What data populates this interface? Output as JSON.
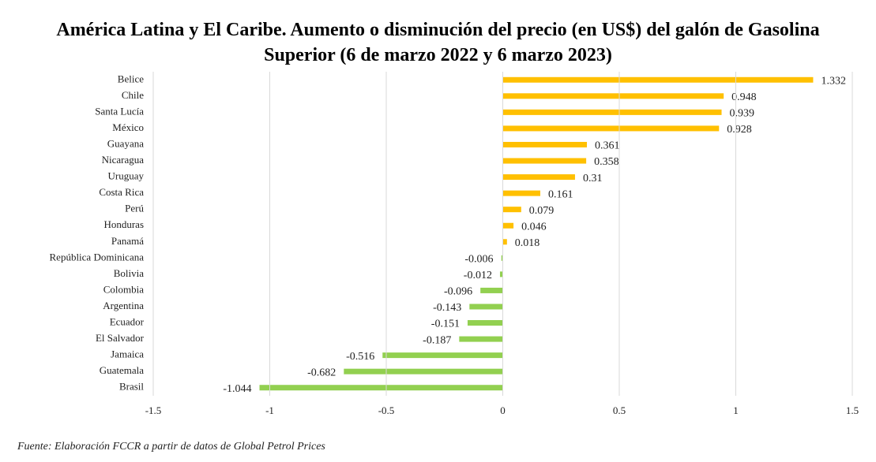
{
  "chart_data": {
    "type": "barh",
    "title": "América Latina y El Caribe. Aumento o disminución del precio (en US$) del galón de Gasolina Superior (6 de marzo 2022 y 6 marzo 2023)",
    "categories": [
      "Belice",
      "Chile",
      "Santa Lucía",
      "México",
      "Guayana",
      "Nicaragua",
      "Uruguay",
      "Costa Rica",
      "Perú",
      "Honduras",
      "Panamá",
      "República Dominicana",
      "Bolivia",
      "Colombia",
      "Argentina",
      "Ecuador",
      "El Salvador",
      "Jamaica",
      "Guatemala",
      "Brasil"
    ],
    "values": [
      1.332,
      0.948,
      0.939,
      0.928,
      0.361,
      0.358,
      0.31,
      0.161,
      0.079,
      0.046,
      0.018,
      -0.006,
      -0.012,
      -0.096,
      -0.143,
      -0.151,
      -0.187,
      -0.516,
      -0.682,
      -1.044
    ],
    "color_positive": "#ffc000",
    "color_negative": "#92d050",
    "xlim": [
      -1.5,
      1.5
    ],
    "xticks": [
      -1.5,
      -1,
      -0.5,
      0,
      0.5,
      1,
      1.5
    ],
    "grid": true,
    "source": "Fuente: Elaboración FCCR a partir de datos de Global Petrol Prices"
  }
}
